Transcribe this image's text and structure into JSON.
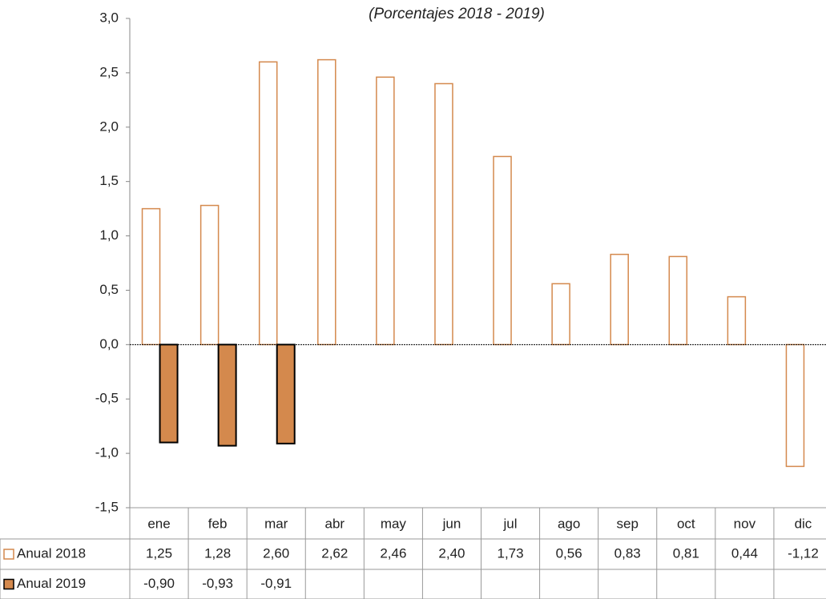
{
  "chart_data": {
    "type": "bar",
    "title": "(Porcentajes 2018 - 2019)",
    "categories": [
      "ene",
      "feb",
      "mar",
      "abr",
      "may",
      "jun",
      "jul",
      "ago",
      "sep",
      "oct",
      "nov",
      "dic"
    ],
    "series": [
      {
        "name": "Anual 2018",
        "color": "#d4894d",
        "fill": "none",
        "values": [
          1.25,
          1.28,
          2.6,
          2.62,
          2.46,
          2.4,
          1.73,
          0.56,
          0.83,
          0.81,
          0.44,
          -1.12
        ],
        "value_labels": [
          "1,25",
          "1,28",
          "2,60",
          "2,62",
          "2,46",
          "2,40",
          "1,73",
          "0,56",
          "0,83",
          "0,81",
          "0,44",
          "-1,12"
        ]
      },
      {
        "name": "Anual 2019",
        "color": "#d4894d",
        "fill": "solid",
        "values": [
          -0.9,
          -0.93,
          -0.91,
          null,
          null,
          null,
          null,
          null,
          null,
          null,
          null,
          null
        ],
        "value_labels": [
          "-0,90",
          "-0,93",
          "-0,91",
          null,
          null,
          null,
          null,
          null,
          null,
          null,
          null,
          null
        ]
      }
    ],
    "ylim": [
      -1.5,
      3.0
    ],
    "yticks": [
      {
        "value": -1.5,
        "label": "-1,5"
      },
      {
        "value": -1.0,
        "label": "-1,0"
      },
      {
        "value": -0.5,
        "label": "-0,5"
      },
      {
        "value": 0,
        "label": "0,0"
      },
      {
        "value": 0.5,
        "label": "0,5"
      },
      {
        "value": 1.0,
        "label": "1,0"
      },
      {
        "value": 1.5,
        "label": "1,5"
      },
      {
        "value": 2.0,
        "label": "2,0"
      },
      {
        "value": 2.5,
        "label": "2,5"
      },
      {
        "value": 3.0,
        "label": "3,0"
      }
    ],
    "grid": false
  }
}
